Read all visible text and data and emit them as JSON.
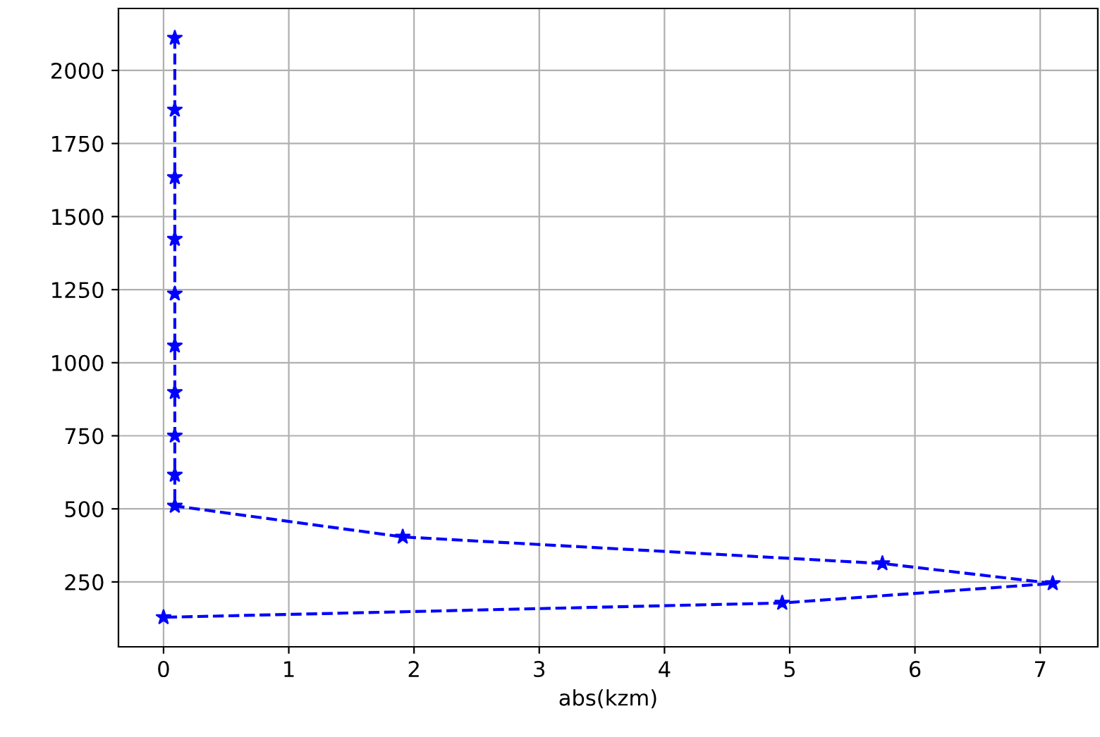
{
  "chart_data": {
    "type": "line",
    "xlabel": "abs(kzm)",
    "x": [
      0.09,
      0.09,
      0.09,
      0.09,
      0.09,
      0.09,
      0.09,
      0.09,
      0.09,
      0.09,
      1.91,
      5.74,
      7.1,
      4.94,
      0.0
    ],
    "series": [
      {
        "color": "#0000ff",
        "values": [
          2111,
          1865,
          1634,
          1423,
          1236,
          1058,
          899,
          750,
          616,
          510,
          404,
          313,
          245,
          178,
          129
        ]
      }
    ],
    "xlim": [
      -0.36,
      7.46
    ],
    "ylim": [
      28,
      2212
    ],
    "xticks": [
      0,
      1,
      2,
      3,
      4,
      5,
      6,
      7
    ],
    "yticks": [
      250,
      500,
      750,
      1000,
      1250,
      1500,
      1750,
      2000
    ],
    "grid": true,
    "marker": "star",
    "line_style": "dashed"
  }
}
